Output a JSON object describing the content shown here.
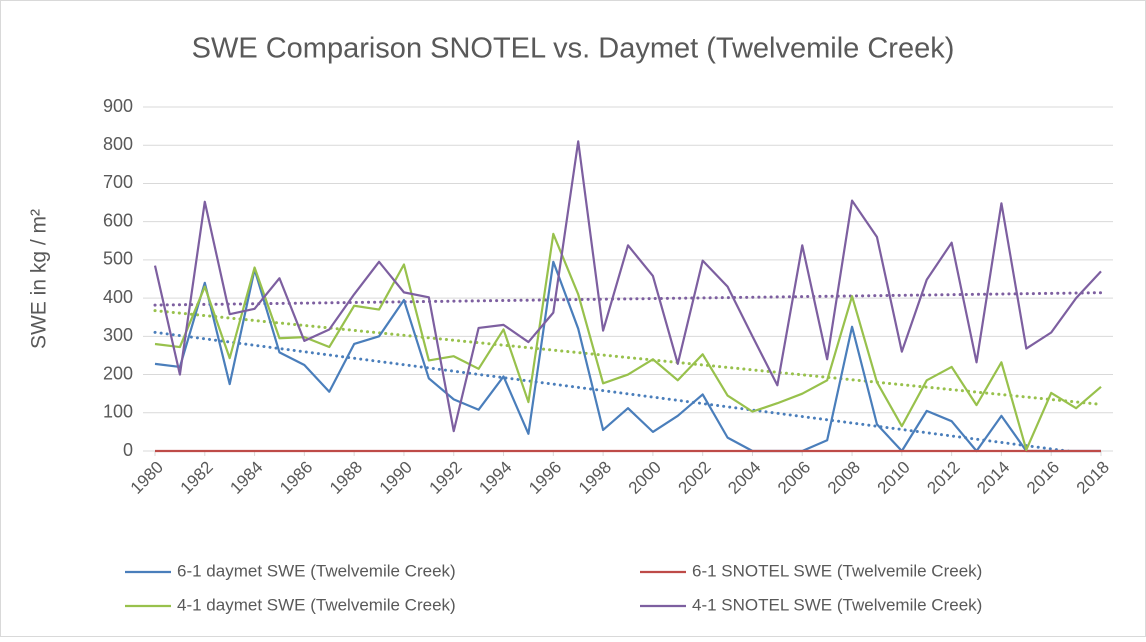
{
  "chart_data": {
    "type": "line",
    "title": "SWE Comparison SNOTEL vs. Daymet (Twelvemile Creek)",
    "ylabel": "SWE in kg / m²",
    "x": [
      1980,
      1981,
      1982,
      1983,
      1984,
      1985,
      1986,
      1987,
      1988,
      1989,
      1990,
      1991,
      1992,
      1993,
      1994,
      1995,
      1996,
      1997,
      1998,
      1999,
      2000,
      2001,
      2002,
      2003,
      2004,
      2005,
      2006,
      2007,
      2008,
      2009,
      2010,
      2011,
      2012,
      2013,
      2014,
      2015,
      2016,
      2017,
      2018
    ],
    "xlim": [
      1980,
      2018
    ],
    "xticks": [
      1980,
      1982,
      1984,
      1986,
      1988,
      1990,
      1992,
      1994,
      1996,
      1998,
      2000,
      2002,
      2004,
      2006,
      2008,
      2010,
      2012,
      2014,
      2016,
      2018
    ],
    "ylim": [
      0,
      900
    ],
    "yticks": [
      0,
      100,
      200,
      300,
      400,
      500,
      600,
      700,
      800,
      900
    ],
    "grid": true,
    "legend": "bottom",
    "trendline": "linear",
    "series": [
      {
        "name": "6-1 daymet SWE (Twelvemile Creek)",
        "color": "#4a7ebb",
        "values": [
          228,
          220,
          440,
          175,
          475,
          258,
          225,
          155,
          280,
          300,
          395,
          190,
          135,
          108,
          195,
          45,
          495,
          320,
          55,
          112,
          50,
          92,
          148,
          35,
          0,
          0,
          0,
          28,
          325,
          70,
          0,
          105,
          78,
          0,
          92,
          0,
          0,
          0,
          0
        ]
      },
      {
        "name": "6-1 SNOTEL SWE (Twelvemile Creek)",
        "color": "#be4b48",
        "values": [
          0,
          0,
          0,
          0,
          0,
          0,
          0,
          0,
          0,
          0,
          0,
          0,
          0,
          0,
          0,
          0,
          0,
          0,
          0,
          0,
          0,
          0,
          0,
          0,
          0,
          0,
          0,
          0,
          0,
          0,
          0,
          0,
          0,
          0,
          0,
          0,
          0,
          0,
          0
        ]
      },
      {
        "name": "4-1 daymet SWE (Twelvemile Creek)",
        "color": "#98c14c",
        "values": [
          280,
          272,
          430,
          243,
          480,
          295,
          298,
          272,
          380,
          370,
          488,
          237,
          248,
          215,
          318,
          128,
          568,
          410,
          177,
          200,
          240,
          185,
          253,
          145,
          103,
          125,
          150,
          185,
          405,
          180,
          65,
          185,
          220,
          120,
          232,
          3,
          152,
          112,
          168
        ]
      },
      {
        "name": "4-1 SNOTEL SWE (Twelvemile Creek)",
        "color": "#7d5fa0",
        "values": [
          485,
          200,
          652,
          358,
          372,
          452,
          288,
          318,
          410,
          495,
          415,
          402,
          52,
          322,
          330,
          285,
          362,
          810,
          315,
          538,
          458,
          228,
          498,
          430,
          300,
          172,
          538,
          240,
          655,
          560,
          260,
          448,
          545,
          232,
          648,
          268,
          310,
          400,
          470
        ]
      }
    ]
  }
}
